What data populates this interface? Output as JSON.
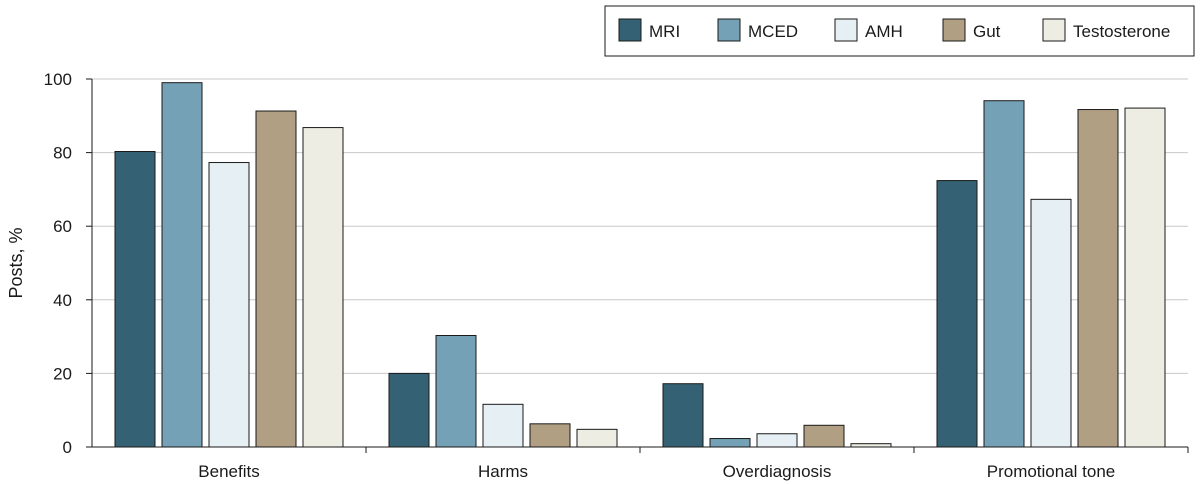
{
  "chart_data": {
    "type": "bar",
    "title": "",
    "xlabel": "",
    "ylabel": "Posts, %",
    "ylim": [
      0,
      100
    ],
    "yticks": [
      0,
      20,
      40,
      60,
      80,
      100
    ],
    "grid": true,
    "legend_position": "top-right",
    "categories": [
      "Benefits",
      "Harms",
      "Overdiagnosis",
      "Promotional tone"
    ],
    "series": [
      {
        "name": "MRI",
        "color": "#346274",
        "values": [
          80.3,
          20.0,
          17.2,
          72.4
        ]
      },
      {
        "name": "MCED",
        "color": "#74a1b6",
        "values": [
          99.0,
          30.3,
          2.3,
          94.1
        ]
      },
      {
        "name": "AMH",
        "color": "#e6eff3",
        "values": [
          77.3,
          11.6,
          3.6,
          67.3
        ]
      },
      {
        "name": "Gut",
        "color": "#b09f82",
        "values": [
          91.3,
          6.3,
          5.9,
          91.7
        ]
      },
      {
        "name": "Testosterone",
        "color": "#edede4",
        "values": [
          86.8,
          4.8,
          0.9,
          92.1
        ]
      }
    ]
  }
}
